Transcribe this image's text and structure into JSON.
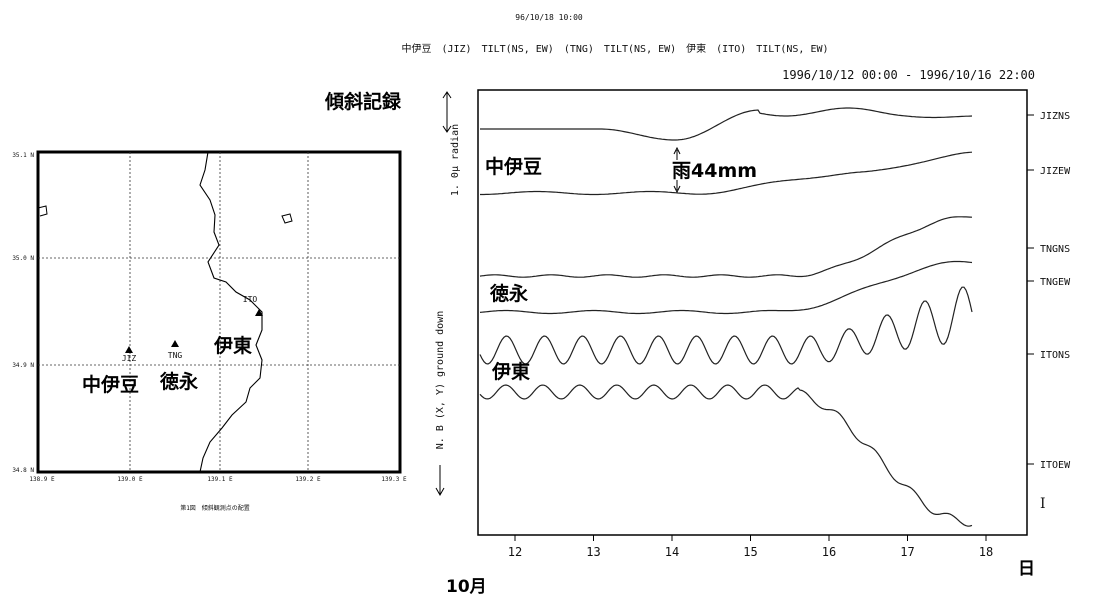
{
  "header": {
    "timestamp": "96/10/18 10:00",
    "stations_line": "中伊豆　(JIZ)　TILT(NS, EW)　(TNG)　TILT(NS, EW)　伊東　(ITO)　TILT(NS, EW)",
    "period": "1996/10/12 00:00 - 1996/10/16 22:00"
  },
  "title": "傾斜記録",
  "map": {
    "lat_ticks": [
      "35.1 N",
      "35.0 N",
      "34.9 N",
      "34.8 N"
    ],
    "lon_ticks": [
      "138.9 E",
      "139.0 E",
      "139.1 E",
      "139.2 E",
      "139.3 E"
    ],
    "stations": [
      {
        "code": "JIZ",
        "name": "中伊豆"
      },
      {
        "code": "TNG",
        "name": "徳永"
      },
      {
        "code": "ITO",
        "name": "伊東"
      }
    ],
    "caption": "第1図　傾斜観測点の配置"
  },
  "record": {
    "y_axis_label": "N. B (X, Y) ground down",
    "scale_label": "1. 0μ radian",
    "x_ticks": [
      "12",
      "13",
      "14",
      "15",
      "16",
      "17",
      "18"
    ],
    "x_unit_month": "10月",
    "x_unit_day": "日",
    "traces": [
      "JIZNS",
      "JIZEW",
      "TNGNS",
      "TNGEW",
      "ITONS",
      "ITOEW"
    ],
    "trace_note": "I",
    "rain": "雨44mm",
    "groups": [
      "中伊豆",
      "徳永",
      "伊東"
    ]
  }
}
